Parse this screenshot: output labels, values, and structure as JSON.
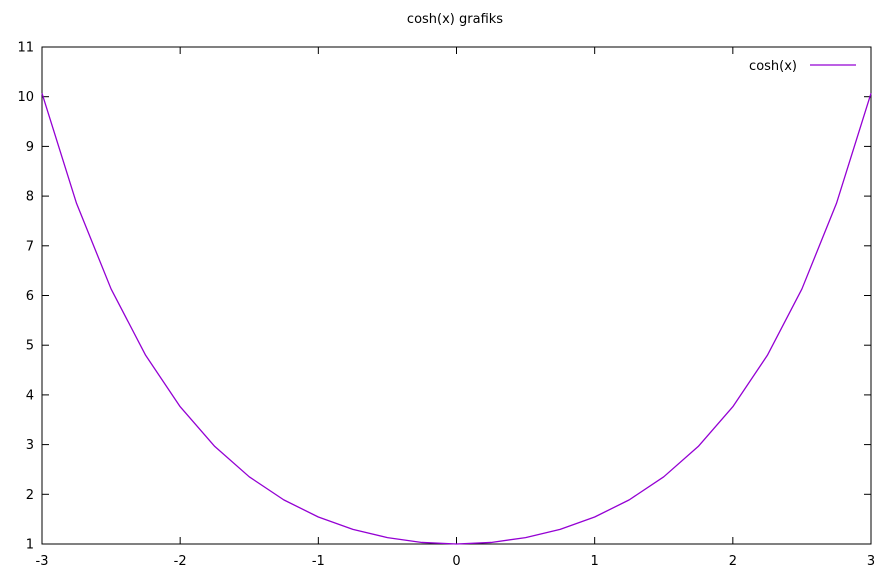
{
  "chart_data": {
    "type": "line",
    "title": "cosh(x) grafiks",
    "xlabel": "",
    "ylabel": "",
    "xlim": [
      -3,
      3
    ],
    "ylim": [
      1,
      11
    ],
    "x_ticks": [
      -3,
      -2,
      -1,
      0,
      1,
      2,
      3
    ],
    "y_ticks": [
      1,
      2,
      3,
      4,
      5,
      6,
      7,
      8,
      9,
      10,
      11
    ],
    "x_tick_labels": [
      "-3",
      "-2",
      "-1",
      "0",
      "1",
      "2",
      "3"
    ],
    "y_tick_labels": [
      "1",
      "2",
      "3",
      "4",
      "5",
      "6",
      "7",
      "8",
      "9",
      "10",
      "11"
    ],
    "grid": false,
    "legend_position": "top-right",
    "series": [
      {
        "name": "cosh(x)",
        "color": "#9400d3",
        "x": [
          -3,
          -2.75,
          -2.5,
          -2.25,
          -2,
          -1.75,
          -1.5,
          -1.25,
          -1,
          -0.75,
          -0.5,
          -0.25,
          0,
          0.25,
          0.5,
          0.75,
          1,
          1.25,
          1.5,
          1.75,
          2,
          2.25,
          2.5,
          2.75,
          3
        ],
        "y": [
          10.068,
          7.853,
          6.132,
          4.797,
          3.762,
          2.964,
          2.352,
          1.888,
          1.543,
          1.295,
          1.128,
          1.031,
          1.0,
          1.031,
          1.128,
          1.295,
          1.543,
          1.888,
          2.352,
          2.964,
          3.762,
          4.797,
          6.132,
          7.853,
          10.068
        ]
      }
    ]
  }
}
